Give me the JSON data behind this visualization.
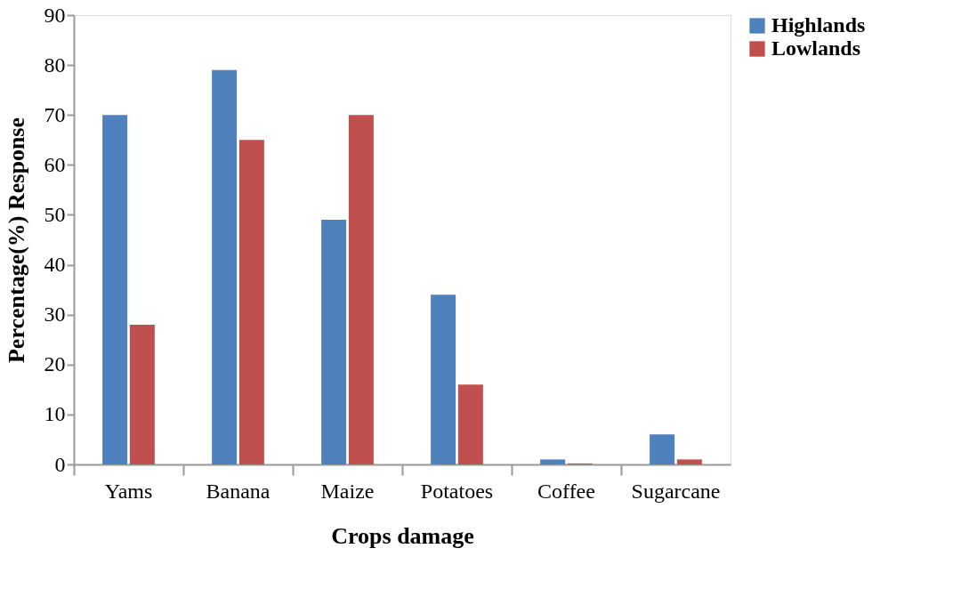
{
  "chart_data": {
    "type": "bar",
    "xlabel": "Crops damage",
    "ylabel": "Percentage(%)  Response",
    "categories": [
      "Yams",
      "Banana",
      "Maize",
      "Potatoes",
      "Coffee",
      "Sugarcane"
    ],
    "series": [
      {
        "name": "Highlands",
        "color": "#4f81bd",
        "values": [
          70,
          79,
          49,
          34,
          1,
          6
        ]
      },
      {
        "name": "Lowlands",
        "color": "#c0504d",
        "values": [
          28,
          65,
          70,
          16,
          0.2,
          1
        ]
      }
    ],
    "ylim": [
      0,
      90
    ],
    "yticks": [
      0,
      10,
      20,
      30,
      40,
      50,
      60,
      70,
      80,
      90
    ],
    "grid": false,
    "legend": "right"
  }
}
